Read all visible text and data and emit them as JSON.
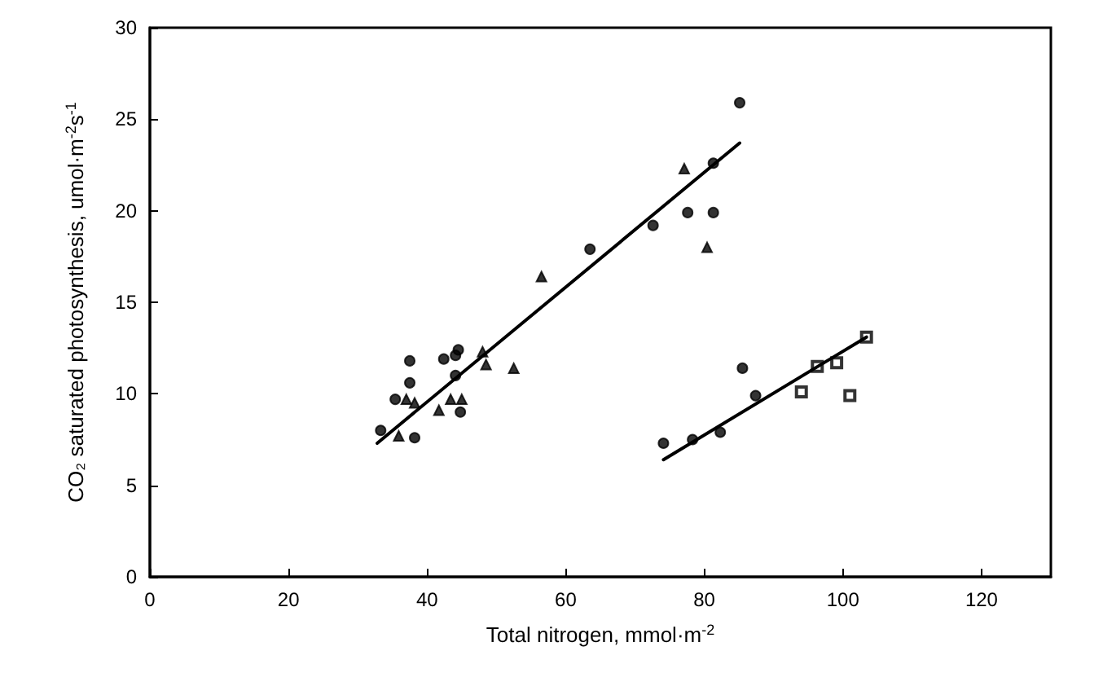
{
  "chart_data": {
    "type": "scatter",
    "xlabel": "Total nitrogen, mmol·m$^{-2}$",
    "ylabel": "CO₂ saturated photosynthesis, umol·m$^{-2}$s$^{-1}$",
    "xlim": [
      0,
      130
    ],
    "xticks": [
      0,
      20,
      40,
      60,
      80,
      100,
      120
    ],
    "ylim": [
      0,
      30
    ],
    "yticks": [
      0,
      5,
      10,
      15,
      20,
      25,
      30
    ],
    "grid": false,
    "series": [
      {
        "type": "scatter",
        "marker": "circle",
        "color": "#000000",
        "x": [
          33.3,
          35.4,
          37.5,
          37.5,
          38.2,
          42.4,
          44.1,
          44.5,
          44.1,
          44.8,
          63.5,
          74.1,
          78.3,
          82.3,
          85.5,
          87.4
        ],
        "values": [
          8.0,
          9.7,
          11.8,
          10.6,
          7.6,
          11.9,
          12.1,
          12.4,
          11.0,
          9.0,
          17.9,
          7.3,
          7.5,
          7.9,
          11.4,
          9.9
        ]
      },
      {
        "type": "scatter",
        "marker": "circle",
        "color": "#000000",
        "x": [
          72.6,
          77.6,
          81.3,
          81.3,
          85.1
        ],
        "values": [
          19.2,
          19.9,
          19.9,
          22.6,
          25.9
        ]
      },
      {
        "type": "scatter",
        "marker": "triangle",
        "color": "#000000",
        "x": [
          35.9,
          37.0,
          38.2,
          41.7,
          43.4,
          45.0,
          48.0,
          48.5,
          52.5,
          56.5,
          77.1,
          80.4
        ],
        "values": [
          7.7,
          9.7,
          9.5,
          9.1,
          9.7,
          9.7,
          12.3,
          11.6,
          11.4,
          16.4,
          22.3,
          18.0
        ]
      },
      {
        "type": "scatter",
        "marker": "square",
        "color": "#000000",
        "x": [
          94.0,
          96.3,
          99.1,
          101.0,
          103.4
        ],
        "values": [
          10.1,
          11.5,
          11.7,
          9.9,
          13.1
        ]
      },
      {
        "type": "line",
        "marker": "none",
        "color": "#000000",
        "x": [
          32.8,
          85.1
        ],
        "values": [
          7.3,
          23.7
        ]
      },
      {
        "type": "line",
        "marker": "none",
        "color": "#000000",
        "x": [
          74.1,
          103.4
        ],
        "values": [
          6.4,
          13.1
        ]
      }
    ]
  }
}
